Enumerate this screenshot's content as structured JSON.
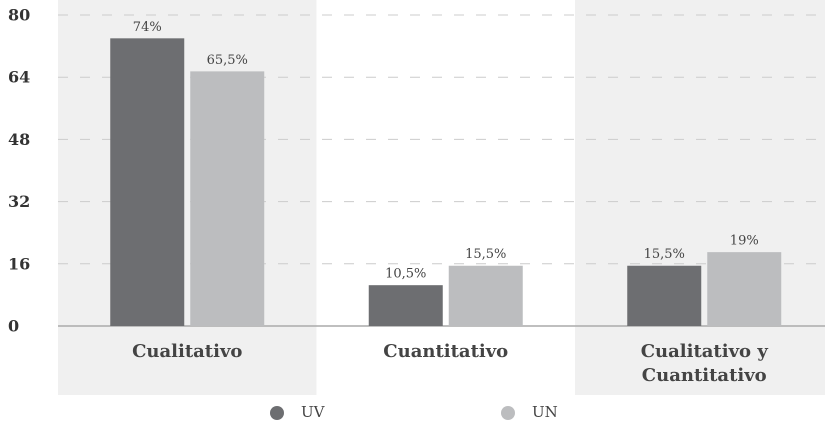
{
  "chart_data": {
    "type": "bar",
    "categories": [
      "Cualitativo",
      "Cuantitativo",
      "Cualitativo y Cuantitativo"
    ],
    "series": [
      {
        "name": "UV",
        "color": "#6d6e71",
        "values": [
          74,
          10.5,
          15.5
        ],
        "value_labels": [
          "74%",
          "10,5%",
          "15,5%"
        ]
      },
      {
        "name": "UN",
        "color": "#bcbdbf",
        "values": [
          65.5,
          15.5,
          19
        ],
        "value_labels": [
          "65,5%",
          "15,5%",
          "19%"
        ]
      }
    ],
    "ylim": [
      0,
      80
    ],
    "yticks": [
      0,
      16,
      32,
      48,
      64,
      80
    ],
    "grid": true
  }
}
